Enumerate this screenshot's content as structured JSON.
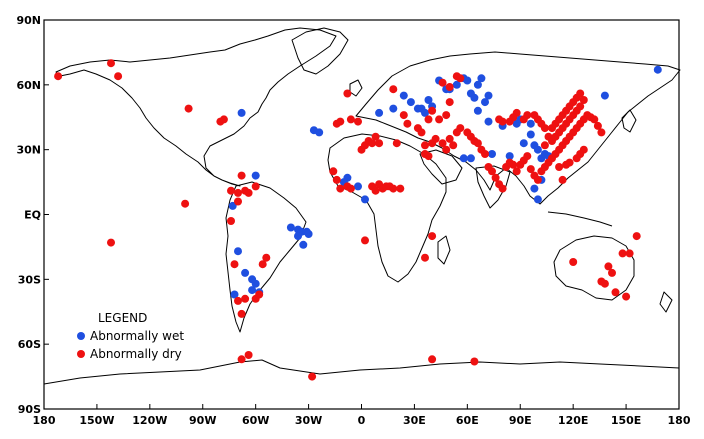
{
  "legend": {
    "title": "LEGEND",
    "items": [
      {
        "label": "Abnormally wet",
        "color": "#1f4fe0"
      },
      {
        "label": "Abnormally dry",
        "color": "#ee1111"
      }
    ]
  },
  "axes": {
    "x_ticks": [
      "180",
      "150W",
      "120W",
      "90W",
      "60W",
      "30W",
      "0",
      "30E",
      "60E",
      "90E",
      "120E",
      "150E",
      "180"
    ],
    "y_ticks": [
      "90N",
      "60N",
      "30N",
      "EQ",
      "30S",
      "60S",
      "90S"
    ]
  },
  "chart_data": {
    "type": "scatter",
    "xlim": [
      -180,
      180
    ],
    "ylim": [
      -90,
      90
    ],
    "series": [
      {
        "name": "Abnormally wet",
        "points": [
          [
            -68,
            47
          ],
          [
            -60,
            18
          ],
          [
            -73,
            4
          ],
          [
            -70,
            -17
          ],
          [
            -66,
            -27
          ],
          [
            -60,
            -32
          ],
          [
            -62,
            -35
          ],
          [
            -62,
            -30
          ],
          [
            -58,
            -36
          ],
          [
            -72,
            -37
          ],
          [
            -40,
            -6
          ],
          [
            -36,
            -7
          ],
          [
            -34,
            -8
          ],
          [
            -36,
            -10
          ],
          [
            -31,
            -8
          ],
          [
            -30,
            -9
          ],
          [
            -33,
            -14
          ],
          [
            -27,
            39
          ],
          [
            -24,
            38
          ],
          [
            -8,
            17
          ],
          [
            -10,
            15
          ],
          [
            -2,
            13
          ],
          [
            2,
            7
          ],
          [
            10,
            47
          ],
          [
            18,
            49
          ],
          [
            24,
            55
          ],
          [
            28,
            52
          ],
          [
            32,
            49
          ],
          [
            34,
            49
          ],
          [
            36,
            47
          ],
          [
            40,
            50
          ],
          [
            38,
            53
          ],
          [
            44,
            62
          ],
          [
            48,
            58
          ],
          [
            50,
            58
          ],
          [
            54,
            60
          ],
          [
            58,
            63
          ],
          [
            60,
            62
          ],
          [
            62,
            56
          ],
          [
            64,
            54
          ],
          [
            66,
            60
          ],
          [
            68,
            63
          ],
          [
            66,
            48
          ],
          [
            70,
            52
          ],
          [
            72,
            55
          ],
          [
            72,
            43
          ],
          [
            80,
            41
          ],
          [
            88,
            42
          ],
          [
            90,
            44
          ],
          [
            96,
            42
          ],
          [
            96,
            37
          ],
          [
            98,
            32
          ],
          [
            100,
            30
          ],
          [
            102,
            26
          ],
          [
            104,
            28
          ],
          [
            106,
            27
          ],
          [
            92,
            33
          ],
          [
            84,
            27
          ],
          [
            74,
            28
          ],
          [
            62,
            26
          ],
          [
            58,
            26
          ],
          [
            100,
            7
          ],
          [
            98,
            12
          ],
          [
            102,
            16
          ],
          [
            138,
            55
          ],
          [
            168,
            67
          ]
        ]
      },
      {
        "name": "Abnormally dry",
        "points": [
          [
            -172,
            64
          ],
          [
            -142,
            70
          ],
          [
            -138,
            64
          ],
          [
            -98,
            49
          ],
          [
            -80,
            43
          ],
          [
            -78,
            44
          ],
          [
            -100,
            5
          ],
          [
            -68,
            18
          ],
          [
            -74,
            11
          ],
          [
            -70,
            10
          ],
          [
            -66,
            11
          ],
          [
            -64,
            10
          ],
          [
            -60,
            13
          ],
          [
            -70,
            6
          ],
          [
            -74,
            -3
          ],
          [
            -72,
            -23
          ],
          [
            -56,
            -23
          ],
          [
            -54,
            -20
          ],
          [
            -60,
            -39
          ],
          [
            -58,
            -37
          ],
          [
            -66,
            -39
          ],
          [
            -70,
            -40
          ],
          [
            -68,
            -46
          ],
          [
            -68,
            -67
          ],
          [
            -64,
            -65
          ],
          [
            -28,
            -75
          ],
          [
            -142,
            -13
          ],
          [
            -8,
            56
          ],
          [
            -12,
            43
          ],
          [
            -6,
            44
          ],
          [
            -2,
            43
          ],
          [
            -14,
            42
          ],
          [
            -16,
            20
          ],
          [
            -14,
            16
          ],
          [
            -12,
            12
          ],
          [
            -8,
            13
          ],
          [
            -6,
            12
          ],
          [
            0,
            30
          ],
          [
            2,
            32
          ],
          [
            4,
            34
          ],
          [
            6,
            33
          ],
          [
            8,
            36
          ],
          [
            10,
            33
          ],
          [
            6,
            13
          ],
          [
            8,
            11
          ],
          [
            10,
            14
          ],
          [
            12,
            12
          ],
          [
            14,
            13
          ],
          [
            16,
            13
          ],
          [
            18,
            12
          ],
          [
            22,
            12
          ],
          [
            24,
            46
          ],
          [
            26,
            42
          ],
          [
            32,
            40
          ],
          [
            34,
            38
          ],
          [
            36,
            32
          ],
          [
            36,
            28
          ],
          [
            38,
            27
          ],
          [
            40,
            33
          ],
          [
            42,
            35
          ],
          [
            46,
            33
          ],
          [
            48,
            30
          ],
          [
            50,
            35
          ],
          [
            52,
            32
          ],
          [
            54,
            38
          ],
          [
            56,
            40
          ],
          [
            60,
            38
          ],
          [
            62,
            36
          ],
          [
            64,
            34
          ],
          [
            66,
            33
          ],
          [
            68,
            30
          ],
          [
            70,
            28
          ],
          [
            72,
            22
          ],
          [
            74,
            20
          ],
          [
            76,
            17
          ],
          [
            78,
            14
          ],
          [
            80,
            12
          ],
          [
            82,
            22
          ],
          [
            84,
            24
          ],
          [
            86,
            23
          ],
          [
            88,
            20
          ],
          [
            90,
            23
          ],
          [
            92,
            25
          ],
          [
            94,
            27
          ],
          [
            96,
            21
          ],
          [
            98,
            18
          ],
          [
            100,
            16
          ],
          [
            102,
            20
          ],
          [
            104,
            22
          ],
          [
            106,
            24
          ],
          [
            108,
            26
          ],
          [
            110,
            28
          ],
          [
            112,
            30
          ],
          [
            114,
            32
          ],
          [
            116,
            34
          ],
          [
            118,
            36
          ],
          [
            120,
            38
          ],
          [
            122,
            40
          ],
          [
            124,
            42
          ],
          [
            126,
            44
          ],
          [
            128,
            46
          ],
          [
            130,
            45
          ],
          [
            132,
            44
          ],
          [
            134,
            41
          ],
          [
            136,
            38
          ],
          [
            106,
            36
          ],
          [
            108,
            40
          ],
          [
            110,
            42
          ],
          [
            112,
            44
          ],
          [
            114,
            46
          ],
          [
            116,
            48
          ],
          [
            118,
            50
          ],
          [
            120,
            52
          ],
          [
            122,
            54
          ],
          [
            124,
            56
          ],
          [
            126,
            53
          ],
          [
            104,
            40
          ],
          [
            102,
            42
          ],
          [
            100,
            44
          ],
          [
            98,
            46
          ],
          [
            94,
            46
          ],
          [
            92,
            44
          ],
          [
            88,
            47
          ],
          [
            86,
            45
          ],
          [
            84,
            43
          ],
          [
            80,
            43
          ],
          [
            78,
            44
          ],
          [
            104,
            32
          ],
          [
            108,
            34
          ],
          [
            110,
            36
          ],
          [
            112,
            38
          ],
          [
            114,
            40
          ],
          [
            116,
            42
          ],
          [
            118,
            44
          ],
          [
            120,
            46
          ],
          [
            122,
            48
          ],
          [
            124,
            50
          ],
          [
            126,
            30
          ],
          [
            124,
            28
          ],
          [
            122,
            26
          ],
          [
            118,
            24
          ],
          [
            116,
            23
          ],
          [
            114,
            16
          ],
          [
            112,
            22
          ],
          [
            50,
            52
          ],
          [
            48,
            46
          ],
          [
            44,
            44
          ],
          [
            40,
            48
          ],
          [
            38,
            44
          ],
          [
            20,
            33
          ],
          [
            46,
            61
          ],
          [
            18,
            58
          ],
          [
            36,
            -20
          ],
          [
            40,
            -67
          ],
          [
            64,
            -68
          ],
          [
            120,
            -22
          ],
          [
            140,
            -24
          ],
          [
            142,
            -27
          ],
          [
            138,
            -32
          ],
          [
            136,
            -31
          ],
          [
            144,
            -36
          ],
          [
            148,
            -18
          ],
          [
            150,
            -38
          ],
          [
            152,
            -18
          ],
          [
            156,
            -10
          ],
          [
            2,
            -12
          ],
          [
            40,
            -10
          ],
          [
            54,
            64
          ],
          [
            50,
            59
          ],
          [
            56,
            63
          ]
        ]
      }
    ]
  }
}
